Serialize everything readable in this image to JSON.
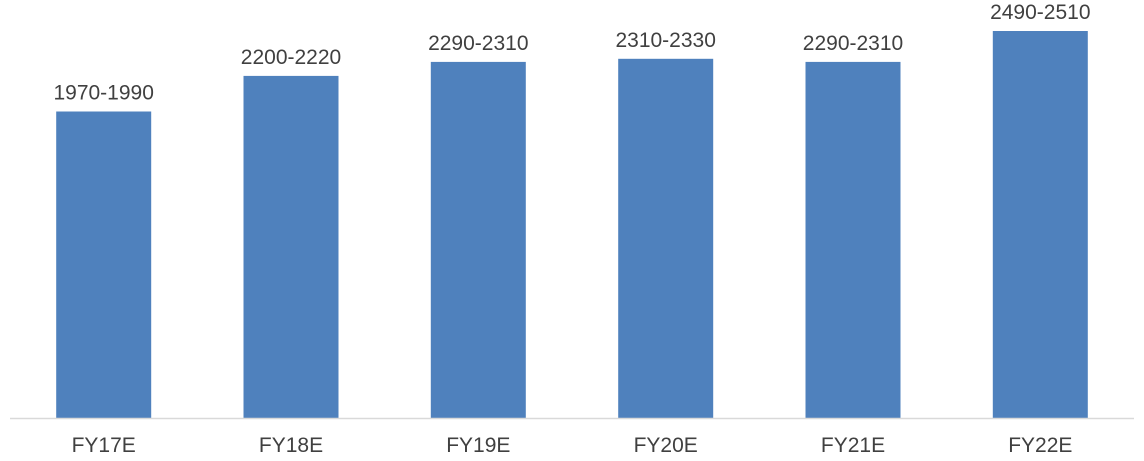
{
  "chart_data": {
    "type": "bar",
    "categories": [
      "FY17E",
      "FY18E",
      "FY19E",
      "FY20E",
      "FY21E",
      "FY22E"
    ],
    "values": [
      1980,
      2210,
      2300,
      2320,
      2300,
      2500
    ],
    "data_labels": [
      "1970-1990",
      "2200-2220",
      "2290-2310",
      "2310-2330",
      "2290-2310",
      "2490-2510"
    ],
    "title": "",
    "xlabel": "",
    "ylabel": "",
    "ylim": [
      0,
      2700
    ],
    "grid": false,
    "legend": "none",
    "bar_color": "#4F81BD",
    "axis_color": "#D9D9D9",
    "text_color": "#404040"
  }
}
